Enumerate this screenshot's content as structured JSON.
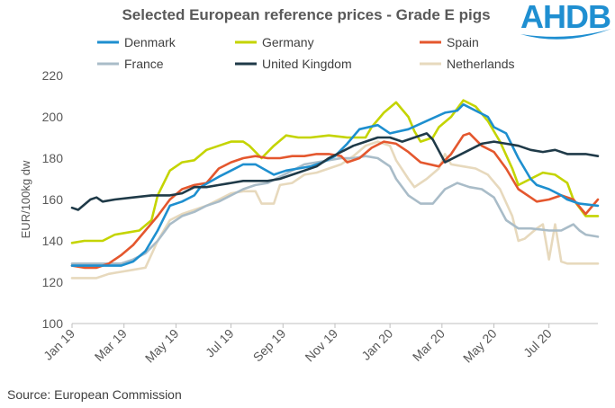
{
  "colors": {
    "Denmark": "#1e8fcf",
    "Germany": "#c4d400",
    "Spain": "#e4572e",
    "France": "#a9bcc8",
    "United Kingdom": "#1f3a48",
    "Netherlands": "#e7d9bd",
    "logo": "#1f8fd1"
  },
  "logo_text": "AHDB",
  "source": "Source: European Commission",
  "chart_data": {
    "type": "line",
    "title": "Selected European reference prices - Grade E pigs",
    "xlabel": "",
    "ylabel": "EUR/100kg dw",
    "ylim": [
      100,
      220
    ],
    "yticks": [
      100,
      120,
      140,
      160,
      180,
      200,
      220
    ],
    "xlim": [
      0,
      86
    ],
    "xticks": [
      {
        "x": 0,
        "label": "Jan 19"
      },
      {
        "x": 8.5,
        "label": "Mar 19"
      },
      {
        "x": 17,
        "label": "May 19"
      },
      {
        "x": 26,
        "label": "Jul 19"
      },
      {
        "x": 34.5,
        "label": "Sep 19"
      },
      {
        "x": 43,
        "label": "Nov 19"
      },
      {
        "x": 52,
        "label": "Jan 20"
      },
      {
        "x": 60.5,
        "label": "Mar 20"
      },
      {
        "x": 69,
        "label": "May 20"
      },
      {
        "x": 78,
        "label": "Jul 20"
      }
    ],
    "grid": false,
    "legend_position": "top",
    "series": [
      {
        "name": "Denmark",
        "points": [
          [
            0,
            128
          ],
          [
            4,
            128
          ],
          [
            8,
            128
          ],
          [
            10,
            130
          ],
          [
            12,
            135
          ],
          [
            14,
            145
          ],
          [
            16,
            157
          ],
          [
            18,
            159
          ],
          [
            20,
            162
          ],
          [
            21,
            166
          ],
          [
            24,
            171
          ],
          [
            26,
            174
          ],
          [
            28,
            177
          ],
          [
            30,
            177
          ],
          [
            33,
            172
          ],
          [
            35,
            174
          ],
          [
            37,
            175
          ],
          [
            39,
            176
          ],
          [
            41,
            178
          ],
          [
            43,
            181
          ],
          [
            45,
            187
          ],
          [
            47,
            194
          ],
          [
            50,
            196
          ],
          [
            52,
            192
          ],
          [
            55,
            194
          ],
          [
            58,
            198
          ],
          [
            61,
            202
          ],
          [
            63,
            203
          ],
          [
            64,
            206
          ],
          [
            66,
            203
          ],
          [
            68,
            200
          ],
          [
            69,
            195
          ],
          [
            71,
            192
          ],
          [
            73,
            180
          ],
          [
            75,
            170
          ],
          [
            76,
            167
          ],
          [
            78,
            165
          ],
          [
            80,
            162
          ],
          [
            81,
            160
          ],
          [
            83,
            158
          ],
          [
            86,
            157
          ]
        ]
      },
      {
        "name": "Germany",
        "points": [
          [
            0,
            139
          ],
          [
            2,
            140
          ],
          [
            5,
            140
          ],
          [
            7,
            143
          ],
          [
            9,
            144
          ],
          [
            11,
            145
          ],
          [
            13,
            150
          ],
          [
            14,
            162
          ],
          [
            16,
            174
          ],
          [
            18,
            178
          ],
          [
            20,
            179
          ],
          [
            22,
            184
          ],
          [
            24,
            186
          ],
          [
            26,
            188
          ],
          [
            28,
            188
          ],
          [
            29,
            186
          ],
          [
            31,
            180
          ],
          [
            33,
            186
          ],
          [
            35,
            191
          ],
          [
            37,
            190
          ],
          [
            39,
            190
          ],
          [
            42,
            191
          ],
          [
            45,
            190
          ],
          [
            48,
            190
          ],
          [
            49,
            195
          ],
          [
            51,
            202
          ],
          [
            53,
            207
          ],
          [
            55,
            200
          ],
          [
            56,
            193
          ],
          [
            57,
            188
          ],
          [
            59,
            190
          ],
          [
            60,
            195
          ],
          [
            62,
            200
          ],
          [
            64,
            208
          ],
          [
            66,
            205
          ],
          [
            68,
            198
          ],
          [
            70,
            188
          ],
          [
            72,
            175
          ],
          [
            73,
            167
          ],
          [
            75,
            170
          ],
          [
            77,
            173
          ],
          [
            79,
            172
          ],
          [
            81,
            168
          ],
          [
            82,
            160
          ],
          [
            84,
            152
          ],
          [
            86,
            152
          ]
        ]
      },
      {
        "name": "Spain",
        "points": [
          [
            0,
            128
          ],
          [
            2,
            127
          ],
          [
            4,
            127
          ],
          [
            6,
            129
          ],
          [
            8,
            133
          ],
          [
            10,
            138
          ],
          [
            12,
            145
          ],
          [
            14,
            152
          ],
          [
            16,
            160
          ],
          [
            18,
            165
          ],
          [
            20,
            167
          ],
          [
            22,
            168
          ],
          [
            24,
            175
          ],
          [
            26,
            178
          ],
          [
            28,
            180
          ],
          [
            30,
            181
          ],
          [
            32,
            180
          ],
          [
            34,
            180
          ],
          [
            36,
            181
          ],
          [
            38,
            181
          ],
          [
            40,
            182
          ],
          [
            42,
            182
          ],
          [
            44,
            181
          ],
          [
            45,
            178
          ],
          [
            47,
            180
          ],
          [
            49,
            185
          ],
          [
            51,
            188
          ],
          [
            53,
            187
          ],
          [
            55,
            183
          ],
          [
            57,
            178
          ],
          [
            60,
            176
          ],
          [
            62,
            182
          ],
          [
            64,
            191
          ],
          [
            65,
            192
          ],
          [
            67,
            186
          ],
          [
            69,
            183
          ],
          [
            71,
            175
          ],
          [
            73,
            165
          ],
          [
            75,
            161
          ],
          [
            76,
            159
          ],
          [
            78,
            160
          ],
          [
            80,
            162
          ],
          [
            82,
            160
          ],
          [
            84,
            153
          ],
          [
            86,
            160
          ]
        ]
      },
      {
        "name": "France",
        "points": [
          [
            0,
            129
          ],
          [
            4,
            129
          ],
          [
            8,
            129
          ],
          [
            10,
            131
          ],
          [
            12,
            134
          ],
          [
            14,
            140
          ],
          [
            16,
            148
          ],
          [
            18,
            152
          ],
          [
            20,
            154
          ],
          [
            22,
            157
          ],
          [
            24,
            159
          ],
          [
            26,
            162
          ],
          [
            28,
            165
          ],
          [
            30,
            167
          ],
          [
            32,
            168
          ],
          [
            34,
            171
          ],
          [
            36,
            174
          ],
          [
            38,
            177
          ],
          [
            40,
            178
          ],
          [
            42,
            179
          ],
          [
            44,
            180
          ],
          [
            46,
            180
          ],
          [
            48,
            181
          ],
          [
            50,
            180
          ],
          [
            52,
            176
          ],
          [
            53,
            170
          ],
          [
            55,
            162
          ],
          [
            57,
            158
          ],
          [
            59,
            158
          ],
          [
            61,
            165
          ],
          [
            63,
            168
          ],
          [
            65,
            166
          ],
          [
            67,
            165
          ],
          [
            69,
            161
          ],
          [
            71,
            150
          ],
          [
            73,
            146
          ],
          [
            75,
            146
          ],
          [
            78,
            145
          ],
          [
            80,
            145
          ],
          [
            82,
            148
          ],
          [
            83,
            145
          ],
          [
            84,
            143
          ],
          [
            86,
            142
          ]
        ]
      },
      {
        "name": "United Kingdom",
        "points": [
          [
            0,
            156
          ],
          [
            1,
            155
          ],
          [
            3,
            160
          ],
          [
            4,
            161
          ],
          [
            5,
            159
          ],
          [
            7,
            160
          ],
          [
            10,
            161
          ],
          [
            13,
            162
          ],
          [
            16,
            162
          ],
          [
            18,
            163
          ],
          [
            20,
            166
          ],
          [
            22,
            166
          ],
          [
            24,
            167
          ],
          [
            26,
            168
          ],
          [
            28,
            169
          ],
          [
            30,
            169
          ],
          [
            32,
            169
          ],
          [
            34,
            170
          ],
          [
            36,
            172
          ],
          [
            38,
            174
          ],
          [
            40,
            176
          ],
          [
            42,
            180
          ],
          [
            44,
            183
          ],
          [
            46,
            186
          ],
          [
            48,
            188
          ],
          [
            50,
            190
          ],
          [
            52,
            190
          ],
          [
            54,
            188
          ],
          [
            56,
            190
          ],
          [
            58,
            192
          ],
          [
            59,
            189
          ],
          [
            61,
            178
          ],
          [
            63,
            181
          ],
          [
            65,
            184
          ],
          [
            67,
            187
          ],
          [
            69,
            188
          ],
          [
            71,
            187
          ],
          [
            73,
            186
          ],
          [
            75,
            184
          ],
          [
            77,
            183
          ],
          [
            79,
            184
          ],
          [
            81,
            182
          ],
          [
            83,
            182
          ],
          [
            84,
            182
          ],
          [
            86,
            181
          ]
        ]
      },
      {
        "name": "Netherlands",
        "points": [
          [
            0,
            122
          ],
          [
            2,
            122
          ],
          [
            4,
            122
          ],
          [
            6,
            124
          ],
          [
            8,
            125
          ],
          [
            10,
            126
          ],
          [
            12,
            127
          ],
          [
            14,
            140
          ],
          [
            16,
            150
          ],
          [
            18,
            153
          ],
          [
            20,
            155
          ],
          [
            22,
            157
          ],
          [
            24,
            160
          ],
          [
            26,
            163
          ],
          [
            28,
            164
          ],
          [
            30,
            164
          ],
          [
            31,
            158
          ],
          [
            33,
            158
          ],
          [
            34,
            167
          ],
          [
            36,
            168
          ],
          [
            38,
            172
          ],
          [
            40,
            173
          ],
          [
            42,
            175
          ],
          [
            44,
            177
          ],
          [
            46,
            181
          ],
          [
            48,
            186
          ],
          [
            50,
            188
          ],
          [
            52,
            186
          ],
          [
            53,
            179
          ],
          [
            55,
            170
          ],
          [
            56,
            166
          ],
          [
            58,
            170
          ],
          [
            60,
            175
          ],
          [
            61,
            182
          ],
          [
            62,
            177
          ],
          [
            64,
            176
          ],
          [
            66,
            175
          ],
          [
            68,
            172
          ],
          [
            70,
            165
          ],
          [
            72,
            152
          ],
          [
            73,
            140
          ],
          [
            74,
            141
          ],
          [
            76,
            146
          ],
          [
            77,
            148
          ],
          [
            78,
            131
          ],
          [
            79,
            148
          ],
          [
            80,
            130
          ],
          [
            81,
            129
          ],
          [
            83,
            129
          ],
          [
            86,
            129
          ]
        ]
      }
    ]
  }
}
